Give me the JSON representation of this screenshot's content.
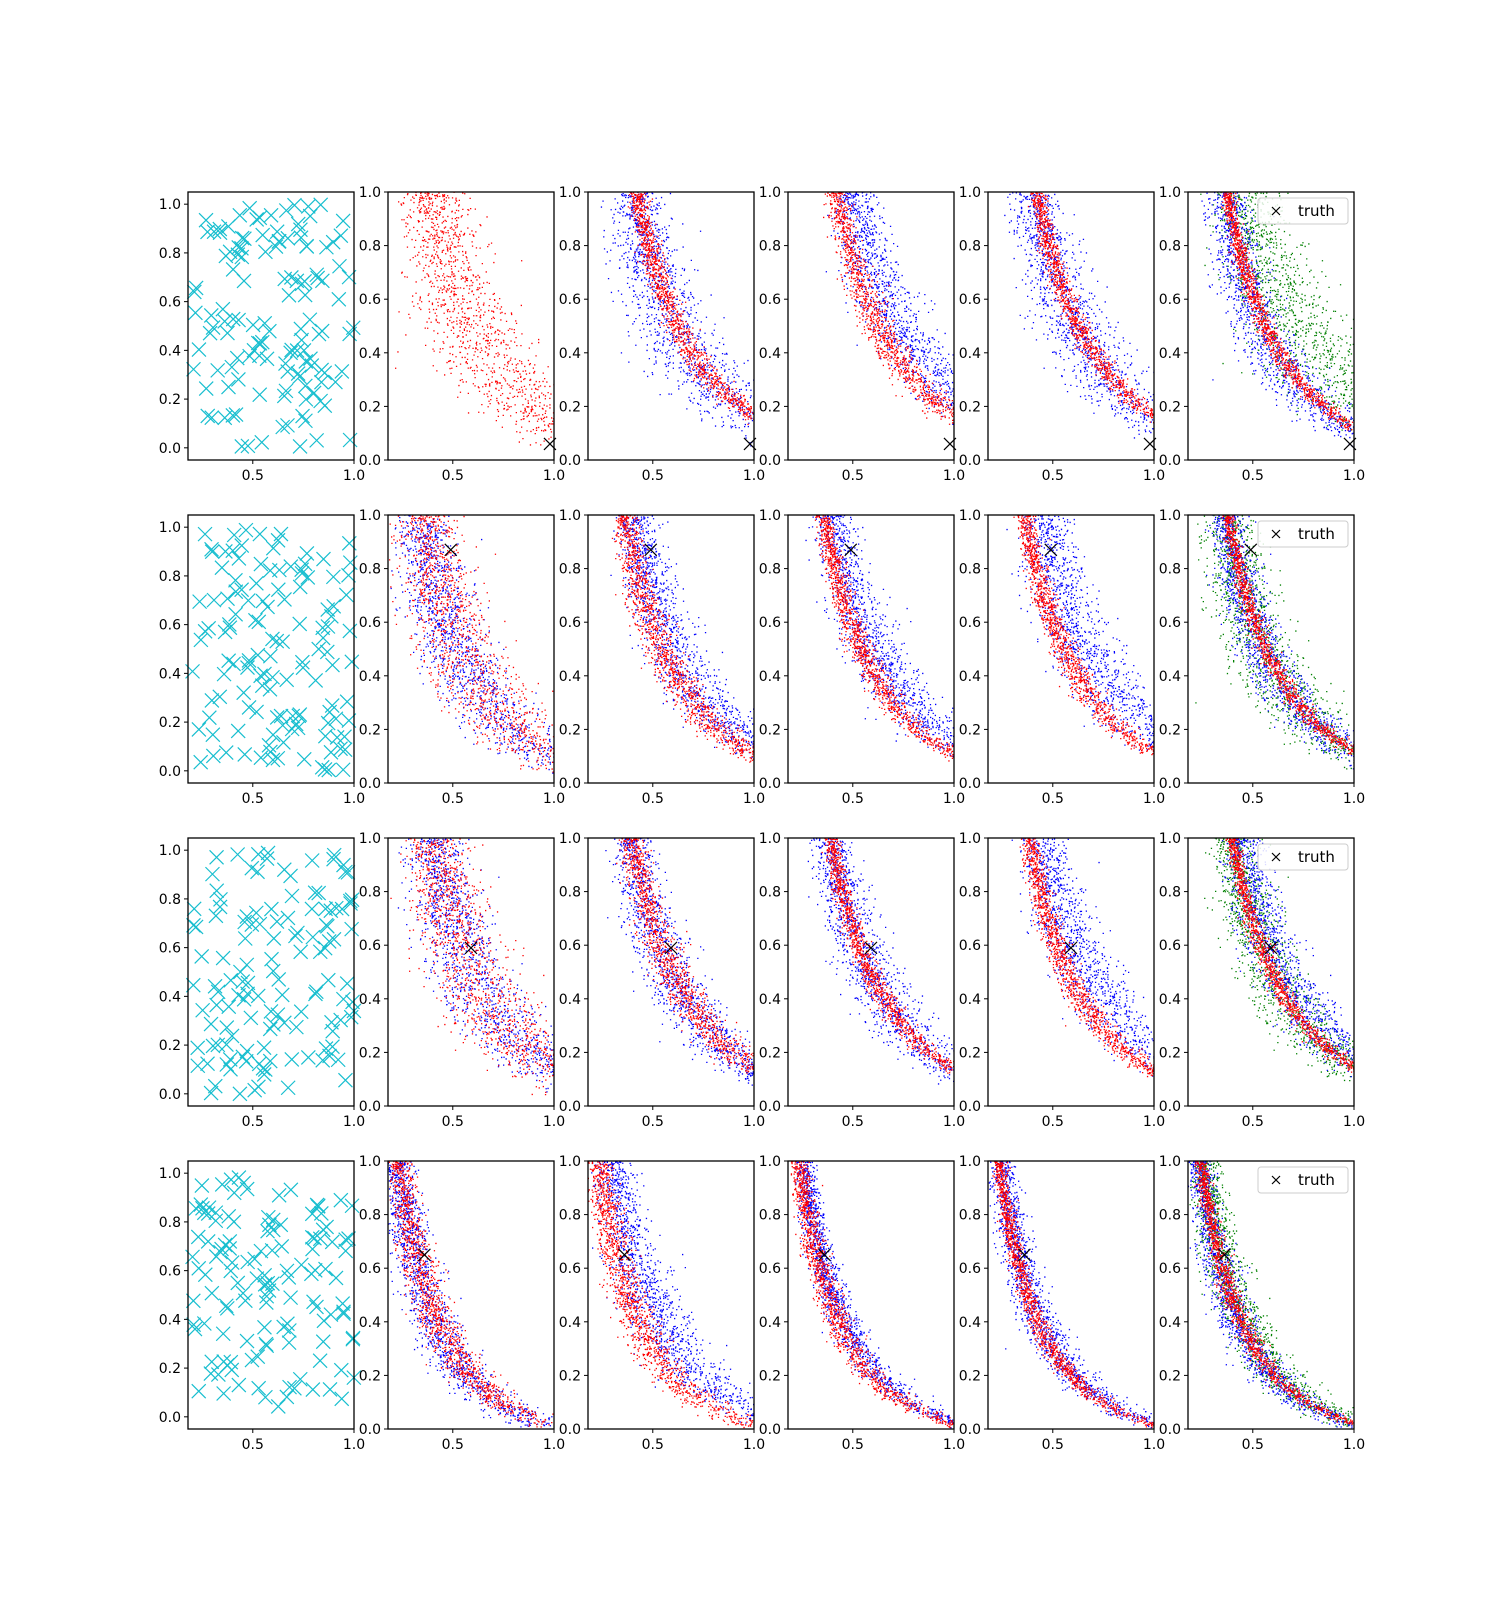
{
  "figure": {
    "rows": 4,
    "cols": 6,
    "legend_label": "truth",
    "colors": {
      "samples_cyan": "#17becf",
      "series_red": "#ff0000",
      "series_blue": "#0000ff",
      "series_green": "#008000",
      "truth_marker": "#000000",
      "axes": "#000000"
    }
  },
  "chart_data": [
    {
      "type": "scatter",
      "row": 1,
      "description_col1": "cyan x-marker samples",
      "col1": {
        "xlim": [
          0.18,
          1.0
        ],
        "ylim": [
          -0.05,
          1.05
        ],
        "xticks": [
          "0.5",
          "1.0"
        ],
        "yticks": [
          "0.0",
          "0.2",
          "0.4",
          "0.6",
          "0.8",
          "1.0"
        ],
        "n_points": 130
      },
      "curve_panels": {
        "xlim": [
          0.18,
          1.0
        ],
        "ylim": [
          0.0,
          1.0
        ],
        "xticks": [
          "0.5",
          "1.0"
        ],
        "yticks": [
          "0.0",
          "0.2",
          "0.4",
          "0.6",
          "0.8",
          "1.0"
        ]
      },
      "truth": {
        "x": 0.98,
        "y": 0.06
      },
      "panels": [
        {
          "col": 2,
          "series": [
            {
              "color": "series_red",
              "k": 0.36,
              "spread": 0.13
            }
          ]
        },
        {
          "col": 3,
          "series": [
            {
              "color": "series_blue",
              "k": 0.38,
              "spread": 0.11
            },
            {
              "color": "series_red",
              "k": 0.4,
              "spread": 0.035
            }
          ]
        },
        {
          "col": 4,
          "series": [
            {
              "color": "series_blue",
              "k": 0.5,
              "spread": 0.09
            },
            {
              "color": "series_red",
              "k": 0.4,
              "spread": 0.045
            }
          ]
        },
        {
          "col": 5,
          "series": [
            {
              "color": "series_blue",
              "k": 0.38,
              "spread": 0.1
            },
            {
              "color": "series_red",
              "k": 0.4,
              "spread": 0.03
            }
          ]
        },
        {
          "col": 6,
          "legend": true,
          "series": [
            {
              "color": "series_green",
              "k": 0.48,
              "spread": 0.14
            },
            {
              "color": "series_blue",
              "k": 0.32,
              "spread": 0.08
            },
            {
              "color": "series_red",
              "k": 0.34,
              "spread": 0.025
            }
          ]
        }
      ]
    },
    {
      "type": "scatter",
      "row": 2,
      "col1": {
        "xlim": [
          0.18,
          1.0
        ],
        "ylim": [
          -0.05,
          1.05
        ],
        "xticks": [
          "0.5",
          "1.0"
        ],
        "yticks": [
          "0.0",
          "0.2",
          "0.4",
          "0.6",
          "0.8",
          "1.0"
        ],
        "n_points": 130
      },
      "curve_panels": {
        "xlim": [
          0.18,
          1.0
        ],
        "ylim": [
          0.0,
          1.0
        ],
        "xticks": [
          "0.5",
          "1.0"
        ],
        "yticks": [
          "0.0",
          "0.2",
          "0.4",
          "0.6",
          "0.8",
          "1.0"
        ]
      },
      "truth": {
        "x": 0.49,
        "y": 0.87
      },
      "panels": [
        {
          "col": 2,
          "series": [
            {
              "color": "series_blue",
              "k": 0.3,
              "spread": 0.1
            },
            {
              "color": "series_red",
              "k": 0.32,
              "spread": 0.12
            }
          ]
        },
        {
          "col": 3,
          "series": [
            {
              "color": "series_blue",
              "k": 0.38,
              "spread": 0.08
            },
            {
              "color": "series_red",
              "k": 0.32,
              "spread": 0.05
            }
          ]
        },
        {
          "col": 4,
          "series": [
            {
              "color": "series_blue",
              "k": 0.38,
              "spread": 0.08
            },
            {
              "color": "series_red",
              "k": 0.32,
              "spread": 0.035
            }
          ]
        },
        {
          "col": 5,
          "series": [
            {
              "color": "series_blue",
              "k": 0.43,
              "spread": 0.1
            },
            {
              "color": "series_red",
              "k": 0.33,
              "spread": 0.035
            }
          ]
        },
        {
          "col": 6,
          "legend": true,
          "series": [
            {
              "color": "series_green",
              "k": 0.33,
              "spread": 0.1
            },
            {
              "color": "series_blue",
              "k": 0.33,
              "spread": 0.07
            },
            {
              "color": "series_red",
              "k": 0.34,
              "spread": 0.025
            }
          ]
        }
      ]
    },
    {
      "type": "scatter",
      "row": 3,
      "col1": {
        "xlim": [
          0.18,
          1.0
        ],
        "ylim": [
          -0.05,
          1.05
        ],
        "xticks": [
          "0.5",
          "1.0"
        ],
        "yticks": [
          "0.0",
          "0.2",
          "0.4",
          "0.6",
          "0.8",
          "1.0"
        ],
        "n_points": 130
      },
      "curve_panels": {
        "xlim": [
          0.18,
          1.0
        ],
        "ylim": [
          0.0,
          1.0
        ],
        "xticks": [
          "0.5",
          "1.0"
        ],
        "yticks": [
          "0.0",
          "0.2",
          "0.4",
          "0.6",
          "0.8",
          "1.0"
        ]
      },
      "truth": {
        "x": 0.59,
        "y": 0.59
      },
      "panels": [
        {
          "col": 2,
          "series": [
            {
              "color": "series_blue",
              "k": 0.37,
              "spread": 0.11
            },
            {
              "color": "series_red",
              "k": 0.37,
              "spread": 0.12
            }
          ]
        },
        {
          "col": 3,
          "series": [
            {
              "color": "series_blue",
              "k": 0.36,
              "spread": 0.08
            },
            {
              "color": "series_red",
              "k": 0.37,
              "spread": 0.05
            }
          ]
        },
        {
          "col": 4,
          "series": [
            {
              "color": "series_blue",
              "k": 0.36,
              "spread": 0.08
            },
            {
              "color": "series_red",
              "k": 0.36,
              "spread": 0.03
            }
          ]
        },
        {
          "col": 5,
          "series": [
            {
              "color": "series_blue",
              "k": 0.44,
              "spread": 0.09
            },
            {
              "color": "series_red",
              "k": 0.35,
              "spread": 0.035
            }
          ]
        },
        {
          "col": 6,
          "legend": true,
          "series": [
            {
              "color": "series_green",
              "k": 0.37,
              "spread": 0.09
            },
            {
              "color": "series_blue",
              "k": 0.42,
              "spread": 0.08
            },
            {
              "color": "series_red",
              "k": 0.37,
              "spread": 0.025
            }
          ]
        }
      ]
    },
    {
      "type": "scatter",
      "row": 4,
      "col1": {
        "xlim": [
          0.18,
          1.0
        ],
        "ylim": [
          -0.05,
          1.05
        ],
        "xticks": [
          "0.5",
          "1.0"
        ],
        "yticks": [
          "0.0",
          "0.2",
          "0.4",
          "0.6",
          "0.8",
          "1.0"
        ],
        "n_points": 130
      },
      "curve_panels": {
        "xlim": [
          0.18,
          1.0
        ],
        "ylim": [
          0.0,
          1.0
        ],
        "xticks": [
          "0.5",
          "1.0"
        ],
        "yticks": [
          "0.0",
          "0.2",
          "0.4",
          "0.6",
          "0.8",
          "1.0"
        ]
      },
      "truth": {
        "x": 0.36,
        "y": 0.65
      },
      "panels": [
        {
          "col": 2,
          "series": [
            {
              "color": "series_blue",
              "k": 0.18,
              "spread": 0.06
            },
            {
              "color": "series_red",
              "k": 0.19,
              "spread": 0.05
            }
          ]
        },
        {
          "col": 3,
          "series": [
            {
              "color": "series_blue",
              "k": 0.26,
              "spread": 0.08
            },
            {
              "color": "series_red",
              "k": 0.19,
              "spread": 0.05
            }
          ]
        },
        {
          "col": 4,
          "series": [
            {
              "color": "series_blue",
              "k": 0.21,
              "spread": 0.04
            },
            {
              "color": "series_red",
              "k": 0.19,
              "spread": 0.035
            }
          ]
        },
        {
          "col": 5,
          "series": [
            {
              "color": "series_blue",
              "k": 0.2,
              "spread": 0.05
            },
            {
              "color": "series_red",
              "k": 0.19,
              "spread": 0.025
            }
          ]
        },
        {
          "col": 6,
          "legend": true,
          "series": [
            {
              "color": "series_green",
              "k": 0.21,
              "spread": 0.06
            },
            {
              "color": "series_blue",
              "k": 0.19,
              "spread": 0.05
            },
            {
              "color": "series_red",
              "k": 0.2,
              "spread": 0.025
            }
          ]
        }
      ]
    }
  ]
}
